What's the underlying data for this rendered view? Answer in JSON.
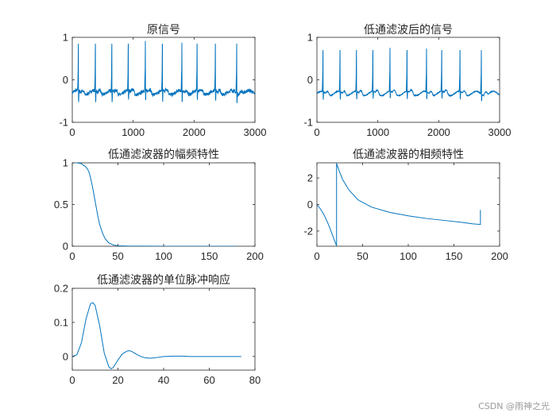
{
  "watermark": "CSDN @雨神之光",
  "line_color": "#0072BD",
  "chart_data": [
    {
      "id": "original-signal",
      "type": "line",
      "title": "原信号",
      "xlim": [
        0,
        3000
      ],
      "ylim": [
        -1,
        1
      ],
      "xticks": [
        0,
        1000,
        2000,
        3000
      ],
      "yticks": [
        -1,
        0,
        1
      ],
      "signal": {
        "kind": "ecg",
        "length": 3000,
        "beats": [
          100,
          380,
          650,
          920,
          1200,
          1480,
          1800,
          2050,
          2350,
          2700
        ],
        "baseline": -0.3,
        "peak": 0.85,
        "dip": -0.55,
        "noise": 0.04
      }
    },
    {
      "id": "filtered-signal",
      "type": "line",
      "title": "低通滤波后的信号",
      "xlim": [
        0,
        3000
      ],
      "ylim": [
        -1,
        1
      ],
      "xticks": [
        0,
        1000,
        2000,
        3000
      ],
      "yticks": [
        -1,
        0,
        1
      ],
      "signal": {
        "kind": "ecg",
        "length": 3000,
        "beats": [
          100,
          380,
          650,
          920,
          1200,
          1480,
          1800,
          2050,
          2350,
          2700
        ],
        "baseline": -0.32,
        "peak": 0.7,
        "dip": -0.5,
        "noise": 0.01
      }
    },
    {
      "id": "magnitude-response",
      "type": "line",
      "title": "低通滤波器的幅频特性",
      "xlim": [
        0,
        200
      ],
      "ylim": [
        0,
        1
      ],
      "xticks": [
        0,
        50,
        100,
        150,
        200
      ],
      "yticks": [
        0,
        0.5,
        1
      ],
      "x": [
        0,
        5,
        10,
        15,
        18,
        20,
        22,
        24,
        26,
        28,
        30,
        33,
        36,
        40,
        45,
        50,
        60,
        80,
        100,
        130,
        160,
        180
      ],
      "y": [
        1.0,
        1.0,
        0.99,
        0.95,
        0.9,
        0.82,
        0.72,
        0.6,
        0.48,
        0.36,
        0.26,
        0.16,
        0.09,
        0.04,
        0.015,
        0.005,
        0.002,
        0.001,
        0,
        0,
        0,
        0
      ]
    },
    {
      "id": "phase-response",
      "type": "line",
      "title": "低通滤波器的相频特性",
      "xlim": [
        0,
        200
      ],
      "ylim": [
        -3.14,
        3.14
      ],
      "xticks": [
        0,
        50,
        100,
        150,
        200
      ],
      "yticks": [
        -2,
        0,
        2
      ],
      "x": [
        0,
        4,
        8,
        12,
        16,
        20,
        21.5,
        21.5,
        24,
        28,
        35,
        45,
        60,
        80,
        100,
        120,
        140,
        160,
        170,
        179,
        179,
        179
      ],
      "y": [
        0,
        -0.35,
        -0.8,
        -1.4,
        -2.1,
        -2.85,
        -3.1,
        3.1,
        2.6,
        1.9,
        1.1,
        0.35,
        -0.2,
        -0.6,
        -0.85,
        -1.05,
        -1.2,
        -1.35,
        -1.45,
        -1.5,
        -1.2,
        -0.4
      ]
    },
    {
      "id": "impulse-response",
      "type": "line",
      "title": "低通滤波器的单位脉冲响应",
      "xlim": [
        0,
        80
      ],
      "ylim": [
        -0.04,
        0.2
      ],
      "xticks": [
        0,
        20,
        40,
        60,
        80
      ],
      "yticks": [
        0,
        0.1,
        0.2
      ],
      "x": [
        0,
        2,
        4,
        6,
        8,
        9,
        10,
        12,
        14,
        16,
        17,
        18,
        20,
        22,
        24,
        25,
        26,
        28,
        30,
        32,
        34,
        36,
        38,
        40,
        44,
        48,
        52,
        56,
        60,
        66,
        70,
        74
      ],
      "y": [
        0,
        0.005,
        0.04,
        0.11,
        0.155,
        0.158,
        0.15,
        0.09,
        0.01,
        -0.03,
        -0.036,
        -0.032,
        -0.01,
        0.008,
        0.016,
        0.017,
        0.015,
        0.007,
        0.0,
        -0.004,
        -0.005,
        -0.004,
        -0.002,
        0.0,
        0.001,
        0.001,
        0.0,
        0.0,
        0.0,
        0.0,
        0.0,
        0.0
      ]
    }
  ]
}
